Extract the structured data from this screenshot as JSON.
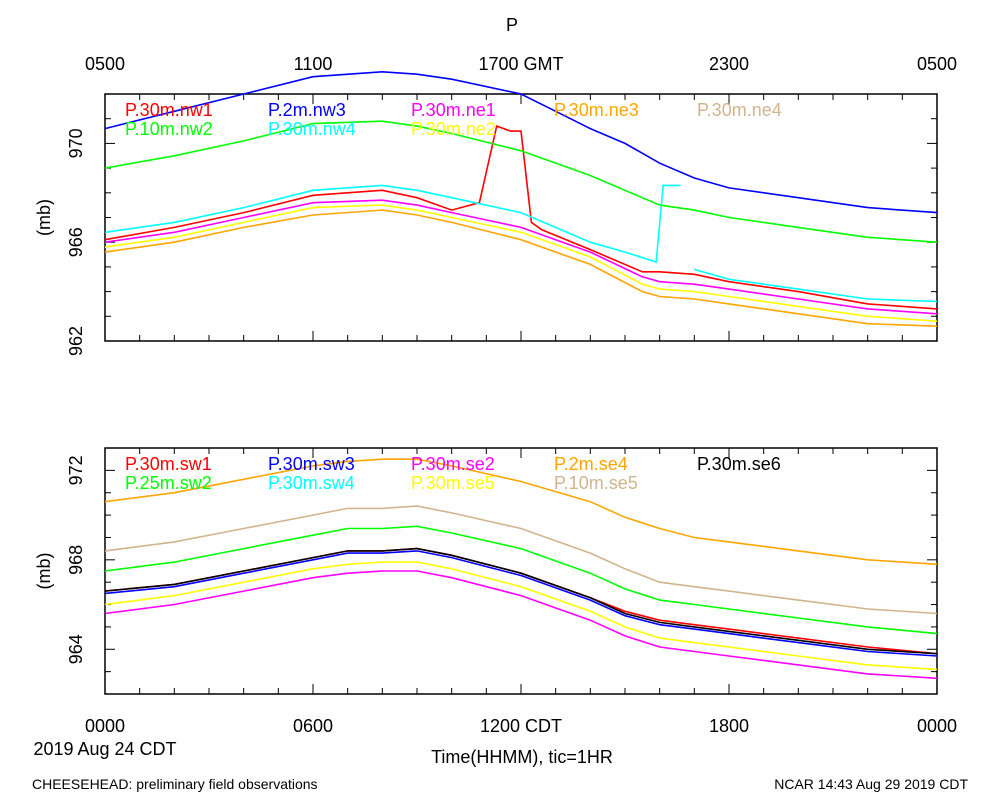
{
  "page_title": "P",
  "top_axis_label": "1700 GMT",
  "footer": {
    "left": "CHEESEHEAD: preliminary field observations",
    "right": "NCAR 14:43 Aug 29 2019 CDT"
  },
  "date_label": "2019 Aug 24 CDT",
  "xlabel": "Time(HHMM), tic=1HR",
  "chart_data": [
    {
      "type": "line",
      "name": "upper",
      "title": "P",
      "ylabel": "(mb)",
      "ylim": [
        962,
        972
      ],
      "ytick_values": [
        962,
        966,
        970
      ],
      "ytick_labels": [
        "962",
        "966",
        "970"
      ],
      "x_unit": "hours since 0000 CDT",
      "xlim": [
        0,
        24
      ],
      "top_ticks": [
        {
          "x": 0,
          "label": "0500"
        },
        {
          "x": 6,
          "label": "1100"
        },
        {
          "x": 12,
          "label": "1700 GMT"
        },
        {
          "x": 18,
          "label": "2300"
        },
        {
          "x": 24,
          "label": "0500"
        }
      ],
      "series": [
        {
          "name": "P.30m.nw1",
          "color": "#ff0000",
          "x": [
            0,
            2,
            4,
            6,
            8,
            9,
            10,
            10.8,
            11.3,
            11.7,
            12,
            12.3,
            12.6,
            14,
            15.5,
            16,
            17,
            18,
            20,
            22,
            24
          ],
          "y": [
            966.1,
            966.6,
            967.2,
            967.9,
            968.1,
            967.8,
            967.3,
            967.6,
            970.7,
            970.5,
            970.5,
            966.8,
            966.5,
            965.7,
            964.8,
            964.8,
            964.7,
            964.4,
            964.0,
            963.5,
            963.3
          ]
        },
        {
          "name": "P.2m.nw3",
          "color": "#0000ff",
          "x": [
            0,
            2,
            4,
            6,
            8,
            9,
            10,
            12,
            13,
            14,
            15,
            16,
            17,
            18,
            20,
            22,
            24
          ],
          "y": [
            970.6,
            971.3,
            972.0,
            972.7,
            972.9,
            972.8,
            972.6,
            972.0,
            971.3,
            970.6,
            970.0,
            969.2,
            968.6,
            968.2,
            967.8,
            967.4,
            967.2
          ]
        },
        {
          "name": "P.30m.ne1",
          "color": "#ff00ff",
          "x": [
            0,
            2,
            4,
            6,
            8,
            9,
            10,
            12,
            14,
            15.5,
            16,
            17,
            18,
            20,
            22,
            24
          ],
          "y": [
            966.0,
            966.4,
            967.0,
            967.6,
            967.7,
            967.5,
            967.2,
            966.6,
            965.6,
            964.6,
            964.4,
            964.3,
            964.1,
            963.7,
            963.3,
            963.1
          ]
        },
        {
          "name": "P.30m.ne3",
          "color": "#ffa500",
          "x": [
            0,
            2,
            4,
            6,
            8,
            9,
            10,
            12,
            14,
            15.5,
            16,
            17,
            18,
            20,
            22,
            24
          ],
          "y": [
            965.6,
            966.0,
            966.6,
            967.1,
            967.3,
            967.1,
            966.8,
            966.1,
            965.1,
            964.0,
            963.8,
            963.7,
            963.5,
            963.1,
            962.7,
            962.6
          ]
        },
        {
          "name": "P.30m.ne4",
          "color": "#d2b48c",
          "x": [],
          "y": []
        },
        {
          "name": "P.10m.nw2",
          "color": "#00ff00",
          "x": [
            0,
            2,
            4,
            6,
            8,
            9,
            10,
            12,
            14,
            15,
            16,
            17,
            18,
            20,
            22,
            24
          ],
          "y": [
            969.0,
            969.5,
            970.1,
            970.8,
            970.9,
            970.7,
            970.4,
            969.7,
            968.7,
            968.1,
            967.5,
            967.3,
            967.0,
            966.6,
            966.2,
            966.0
          ]
        },
        {
          "name": "P.30m.nw4",
          "color": "#00ffff",
          "x": [
            0,
            2,
            4,
            6,
            8,
            9,
            10,
            12,
            14,
            15,
            15.9,
            16.1,
            16.3,
            16.6,
            null,
            17,
            18,
            20,
            22,
            24
          ],
          "y": [
            966.4,
            966.8,
            967.4,
            968.1,
            968.3,
            968.1,
            967.8,
            967.2,
            966.0,
            965.6,
            965.2,
            968.3,
            968.3,
            968.3,
            null,
            964.9,
            964.5,
            964.1,
            963.7,
            963.6
          ]
        },
        {
          "name": "P.30m.ne2",
          "color": "#ffff00",
          "x": [
            0,
            2,
            4,
            6,
            8,
            9,
            10,
            12,
            14,
            15.5,
            16,
            17,
            18,
            20,
            22,
            24
          ],
          "y": [
            965.8,
            966.2,
            966.8,
            967.4,
            967.5,
            967.3,
            967.0,
            966.4,
            965.4,
            964.3,
            964.1,
            964.0,
            963.8,
            963.4,
            963.0,
            962.8
          ]
        }
      ]
    },
    {
      "type": "line",
      "name": "lower",
      "title": "",
      "ylabel": "(mb)",
      "ylim": [
        962,
        973
      ],
      "ytick_values": [
        964,
        968,
        972
      ],
      "ytick_labels": [
        "964",
        "968",
        "972"
      ],
      "x_unit": "hours since 0000 CDT",
      "xlim": [
        0,
        24
      ],
      "bottom_ticks": [
        {
          "x": 0,
          "label": "0000"
        },
        {
          "x": 6,
          "label": "0600"
        },
        {
          "x": 12,
          "label": "1200 CDT"
        },
        {
          "x": 18,
          "label": "1800"
        },
        {
          "x": 24,
          "label": "0000"
        }
      ],
      "series": [
        {
          "name": "P.30m.sw1",
          "color": "#ff0000",
          "x": [
            0,
            2,
            4,
            6,
            7,
            8,
            9,
            10,
            12,
            14,
            15,
            16,
            17,
            18,
            20,
            22,
            24
          ],
          "y": [
            966.6,
            966.9,
            967.5,
            968.1,
            968.4,
            968.4,
            968.5,
            968.2,
            967.4,
            966.3,
            965.7,
            965.3,
            965.1,
            964.9,
            964.5,
            964.1,
            963.8
          ]
        },
        {
          "name": "P.30m.sw3",
          "color": "#0000ff",
          "x": [
            0,
            2,
            4,
            6,
            7,
            8,
            9,
            10,
            12,
            14,
            15,
            16,
            17,
            18,
            20,
            22,
            24
          ],
          "y": [
            966.5,
            966.8,
            967.4,
            968.0,
            968.3,
            968.3,
            968.4,
            968.1,
            967.3,
            966.2,
            965.5,
            965.1,
            964.9,
            964.7,
            964.3,
            963.9,
            963.7
          ]
        },
        {
          "name": "P.30m.se2",
          "color": "#ff00ff",
          "x": [
            0,
            2,
            4,
            6,
            7,
            8,
            9,
            10,
            12,
            14,
            15,
            16,
            17,
            18,
            20,
            22,
            24
          ],
          "y": [
            965.6,
            966.0,
            966.6,
            967.2,
            967.4,
            967.5,
            967.5,
            967.2,
            966.4,
            965.3,
            964.6,
            964.1,
            963.9,
            963.7,
            963.3,
            962.9,
            962.7
          ]
        },
        {
          "name": "P.2m.se4",
          "color": "#ffa500",
          "x": [
            0,
            2,
            4,
            6,
            7,
            8,
            9,
            10,
            12,
            14,
            15,
            16,
            17,
            18,
            20,
            22,
            24
          ],
          "y": [
            970.6,
            971.0,
            971.6,
            972.2,
            972.4,
            972.5,
            972.5,
            972.2,
            971.5,
            970.6,
            969.9,
            969.4,
            969.0,
            968.8,
            968.4,
            968.0,
            967.8
          ]
        },
        {
          "name": "P.30m.se6",
          "color": "#000000",
          "x": [
            0,
            2,
            4,
            6,
            7,
            8,
            9,
            10,
            12,
            14,
            15,
            16,
            17,
            18,
            20,
            22,
            24
          ],
          "y": [
            966.6,
            966.9,
            967.5,
            968.1,
            968.4,
            968.4,
            968.5,
            968.2,
            967.4,
            966.3,
            965.6,
            965.2,
            965.0,
            964.8,
            964.4,
            964.0,
            963.8
          ]
        },
        {
          "name": "P.25m.sw2",
          "color": "#00ff00",
          "x": [
            0,
            2,
            4,
            6,
            7,
            8,
            9,
            10,
            12,
            14,
            15,
            16,
            17,
            18,
            20,
            22,
            24
          ],
          "y": [
            967.5,
            967.9,
            968.5,
            969.1,
            969.4,
            969.4,
            969.5,
            969.2,
            968.5,
            967.4,
            966.7,
            966.2,
            966.0,
            965.8,
            965.4,
            965.0,
            964.7
          ]
        },
        {
          "name": "P.30m.sw4",
          "color": "#00ffff",
          "x": [],
          "y": []
        },
        {
          "name": "P.30m.se5",
          "color": "#ffff00",
          "x": [
            0,
            2,
            4,
            6,
            7,
            8,
            9,
            10,
            12,
            14,
            15,
            16,
            17,
            18,
            20,
            22,
            24
          ],
          "y": [
            966.0,
            966.4,
            967.0,
            967.6,
            967.8,
            967.9,
            967.9,
            967.6,
            966.8,
            965.7,
            965.0,
            964.5,
            964.3,
            964.1,
            963.7,
            963.3,
            963.1
          ]
        },
        {
          "name": "P.10m.se5",
          "color": "#d2b48c",
          "x": [
            0,
            2,
            4,
            6,
            7,
            8,
            9,
            10,
            12,
            14,
            15,
            16,
            17,
            18,
            20,
            22,
            24
          ],
          "y": [
            968.4,
            968.8,
            969.4,
            970.0,
            970.3,
            970.3,
            970.4,
            970.1,
            969.4,
            968.3,
            967.6,
            967.0,
            966.8,
            966.6,
            966.2,
            965.8,
            965.6
          ]
        }
      ]
    }
  ]
}
